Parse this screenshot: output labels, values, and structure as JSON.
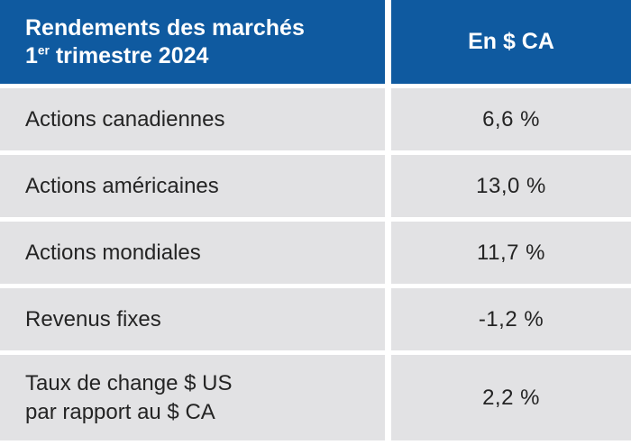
{
  "table": {
    "header": {
      "title_line1": "Rendements des marchés",
      "subtitle_num": "1",
      "subtitle_sup": "er",
      "subtitle_rest": " trimestre 2024",
      "value_column_label": "En $ CA"
    },
    "rows": [
      {
        "label": "Actions canadiennes",
        "value": "6,6 %"
      },
      {
        "label": "Actions américaines",
        "value": "13,0 %"
      },
      {
        "label": "Actions mondiales",
        "value": "11,7 %"
      },
      {
        "label": "Revenus fixes",
        "value": "-1,2 %"
      },
      {
        "label": "Taux de change $ US\npar rapport au $ CA",
        "value": "2,2 %"
      }
    ],
    "colors": {
      "header_bg": "#0F5AA0",
      "header_text": "#FFFFFF",
      "row_bg": "#E2E2E4",
      "row_text": "#242424",
      "divider": "#FFFFFF"
    }
  },
  "chart_data": {
    "type": "table",
    "title": "Rendements des marchés 1er trimestre 2024",
    "columns": [
      "Rendements des marchés 1er trimestre 2024",
      "En $ CA"
    ],
    "rows": [
      [
        "Actions canadiennes",
        "6,6 %"
      ],
      [
        "Actions américaines",
        "13,0 %"
      ],
      [
        "Actions mondiales",
        "11,7 %"
      ],
      [
        "Revenus fixes",
        "-1,2 %"
      ],
      [
        "Taux de change $ US par rapport au $ CA",
        "2,2 %"
      ]
    ],
    "values_numeric_percent": [
      6.6,
      13.0,
      11.7,
      -1.2,
      2.2
    ],
    "unit": "% en $ CA"
  }
}
